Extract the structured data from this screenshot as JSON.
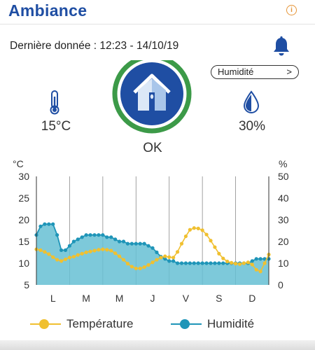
{
  "header": {
    "title": "Ambiance",
    "info_icon": "info-icon",
    "accent_color": "#1f4ea3",
    "info_color": "#e69537"
  },
  "last_data": {
    "text": "Dernière donnée : 12:23 - 14/10/19"
  },
  "alert": {
    "icon": "bell-icon"
  },
  "metric_select": {
    "value": "Humidité",
    "chevron": ">"
  },
  "temperature": {
    "icon": "thermometer-icon",
    "value": "15°C"
  },
  "humidity": {
    "icon": "droplet-icon",
    "value": "30%"
  },
  "status": {
    "icon": "house-icon",
    "label": "OK",
    "ring_color": "#3c9a48",
    "fill_color": "#1f4ea3"
  },
  "chart_data": {
    "type": "area",
    "x": [
      0,
      0.25,
      0.5,
      0.75,
      1,
      1.25,
      1.5,
      1.75,
      2,
      2.25,
      2.5,
      2.75,
      3,
      3.25,
      3.5,
      3.75,
      4,
      4.25,
      4.5,
      4.75,
      5,
      5.25,
      5.5,
      5.75,
      6,
      6.25,
      6.5,
      6.75,
      7,
      7.25,
      7.5,
      7.75,
      8,
      8.25,
      8.5,
      8.75,
      9,
      9.25,
      9.5,
      9.75,
      10,
      10.25,
      10.5,
      10.75,
      11,
      11.25,
      11.5,
      11.75,
      12,
      12.25,
      12.5,
      12.75,
      13,
      13.25,
      13.5,
      13.75,
      14
    ],
    "categories": [
      "L",
      "M",
      "M",
      "J",
      "V",
      "S",
      "D"
    ],
    "category_positions": [
      1,
      3,
      5,
      7,
      9,
      11,
      13
    ],
    "left_axis": {
      "label": "°C",
      "ticks": [
        5,
        10,
        15,
        20,
        25,
        30
      ],
      "range": [
        5,
        30
      ]
    },
    "right_axis": {
      "label": "%",
      "ticks": [
        0,
        10,
        20,
        30,
        40,
        50
      ],
      "range": [
        0,
        50
      ]
    },
    "grid": "vertical",
    "series": [
      {
        "name": "Humidité",
        "axis": "right",
        "color": "#1f95b8",
        "fill": "#66bfd3",
        "values": [
          23,
          27,
          28,
          28,
          28,
          23,
          16,
          16,
          18,
          20,
          21,
          22,
          23,
          23,
          23,
          23,
          23,
          22,
          22,
          21,
          20,
          20,
          19,
          19,
          19,
          19,
          19,
          18,
          17,
          15,
          13,
          12,
          11,
          11,
          10,
          10,
          10,
          10,
          10,
          10,
          10,
          10,
          10,
          10,
          10,
          10,
          10,
          10,
          10,
          10,
          10,
          10,
          11,
          12,
          12,
          12,
          12
        ]
      },
      {
        "name": "Température",
        "axis": "left",
        "color": "#f0c030",
        "values": [
          13.2,
          13,
          12.6,
          12.1,
          11.4,
          10.8,
          10.5,
          10.9,
          11.3,
          11.5,
          11.9,
          12.2,
          12.5,
          12.7,
          12.9,
          13.1,
          13.2,
          13.1,
          12.9,
          12.3,
          11.6,
          10.8,
          9.9,
          9.2,
          8.8,
          8.8,
          9.1,
          9.6,
          10.2,
          10.8,
          11.3,
          11.6,
          11.4,
          11.3,
          12.6,
          14.5,
          16.2,
          17.7,
          18.1,
          18,
          17.6,
          16.6,
          15.2,
          13.7,
          12.2,
          11.1,
          10.4,
          10.1,
          9.9,
          9.8,
          10,
          10.2,
          9.7,
          8.5,
          8.1,
          10,
          12
        ]
      }
    ]
  },
  "legend": [
    {
      "label": "Température",
      "color": "#f0c030"
    },
    {
      "label": "Humidité",
      "color": "#1f95b8"
    }
  ]
}
